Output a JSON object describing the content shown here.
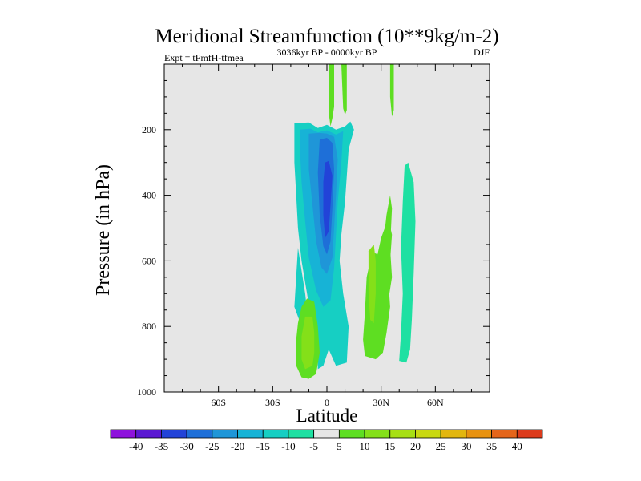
{
  "chart_data": {
    "type": "contour",
    "title": "Meridional Streamfunction (10**9kg/m-2)",
    "subtitle_left": "Expt = tFmfH-tfmea",
    "subtitle_center": "3036kyr BP - 0000kyr BP",
    "subtitle_right": "DJF",
    "xlabel": "Latitude",
    "ylabel": "Pressure (in hPa)",
    "xlim": [
      -90,
      90
    ],
    "ylim": [
      1000,
      0
    ],
    "x_major_ticks": [
      -60,
      -30,
      0,
      30,
      60
    ],
    "x_tick_labels": [
      "60S",
      "30S",
      "0",
      "30N",
      "60N"
    ],
    "x_minor_step": 10,
    "y_major_ticks": [
      200,
      400,
      600,
      800,
      1000
    ],
    "y_tick_labels": [
      "200",
      "400",
      "600",
      "800",
      "1000"
    ],
    "y_minor_step": 50,
    "background_color": "#e6e6e6",
    "colorbar": {
      "labels": [
        "-40",
        "-35",
        "-30",
        "-25",
        "-20",
        "-15",
        "-10",
        "-5",
        "5",
        "10",
        "15",
        "20",
        "25",
        "30",
        "35",
        "40"
      ],
      "colors": [
        "#8e12dc",
        "#5b18d2",
        "#2243d8",
        "#1e6fd8",
        "#1f96d8",
        "#17b3d6",
        "#16cfc3",
        "#1ee0a2",
        "#e6e6e6",
        "#5ede22",
        "#84e019",
        "#a7df14",
        "#c9d811",
        "#e2b60f",
        "#e89210",
        "#e4651b",
        "#dc3b1c"
      ]
    },
    "regions": [
      {
        "name": "neg-10-cell",
        "level": -10,
        "color": "#16cfc3",
        "points": [
          [
            -18,
            180
          ],
          [
            -10,
            178
          ],
          [
            -5,
            195
          ],
          [
            0,
            185
          ],
          [
            5,
            200
          ],
          [
            10,
            190
          ],
          [
            13,
            175
          ],
          [
            15,
            200
          ],
          [
            12,
            260
          ],
          [
            10,
            420
          ],
          [
            8,
            520
          ],
          [
            7,
            600
          ],
          [
            9,
            700
          ],
          [
            12,
            800
          ],
          [
            11,
            910
          ],
          [
            5,
            920
          ],
          [
            1,
            870
          ],
          [
            -2,
            920
          ],
          [
            -5,
            930
          ],
          [
            -5,
            860
          ],
          [
            -8,
            800
          ],
          [
            -11,
            700
          ],
          [
            -14,
            600
          ],
          [
            -16,
            500
          ],
          [
            -17,
            400
          ],
          [
            -18,
            300
          ]
        ]
      },
      {
        "name": "neg-10-sw-tail",
        "level": -10,
        "color": "#16cfc3",
        "points": [
          [
            -16,
            560
          ],
          [
            -12,
            700
          ],
          [
            -10,
            800
          ],
          [
            -12,
            830
          ],
          [
            -18,
            740
          ]
        ]
      },
      {
        "name": "neg-15-cell",
        "level": -15,
        "color": "#17b3d6",
        "points": [
          [
            -15,
            200
          ],
          [
            -9,
            197
          ],
          [
            -5,
            208
          ],
          [
            0,
            202
          ],
          [
            5,
            215
          ],
          [
            9,
            205
          ],
          [
            8,
            300
          ],
          [
            6,
            420
          ],
          [
            5,
            520
          ],
          [
            4,
            620
          ],
          [
            2,
            720
          ],
          [
            -2,
            740
          ],
          [
            -6,
            690
          ],
          [
            -10,
            590
          ],
          [
            -12,
            480
          ],
          [
            -14,
            360
          ],
          [
            -15,
            250
          ]
        ]
      },
      {
        "name": "neg-20-cell",
        "level": -20,
        "color": "#1f96d8",
        "points": [
          [
            -10,
            212
          ],
          [
            -4,
            210
          ],
          [
            0,
            212
          ],
          [
            4,
            222
          ],
          [
            6,
            290
          ],
          [
            5,
            400
          ],
          [
            4,
            500
          ],
          [
            3,
            590
          ],
          [
            0,
            640
          ],
          [
            -3,
            620
          ],
          [
            -6,
            540
          ],
          [
            -8,
            430
          ],
          [
            -10,
            320
          ]
        ]
      },
      {
        "name": "neg-25-cell",
        "level": -25,
        "color": "#1e6fd8",
        "points": [
          [
            -4,
            230
          ],
          [
            0,
            225
          ],
          [
            3,
            240
          ],
          [
            4,
            320
          ],
          [
            3,
            440
          ],
          [
            2,
            540
          ],
          [
            0,
            580
          ],
          [
            -2,
            555
          ],
          [
            -4,
            460
          ],
          [
            -5,
            330
          ]
        ]
      },
      {
        "name": "neg-30-cell",
        "level": -30,
        "color": "#2243d8",
        "points": [
          [
            -1,
            300
          ],
          [
            1,
            295
          ],
          [
            3,
            340
          ],
          [
            2,
            430
          ],
          [
            1,
            510
          ],
          [
            -1,
            530
          ],
          [
            -2,
            460
          ],
          [
            -2,
            360
          ]
        ]
      },
      {
        "name": "pos-5-south-cell",
        "level": 5,
        "color": "#5ede22",
        "points": [
          [
            -14,
            740
          ],
          [
            -11,
            715
          ],
          [
            -7,
            725
          ],
          [
            -5,
            800
          ],
          [
            -4,
            880
          ],
          [
            -6,
            945
          ],
          [
            -10,
            960
          ],
          [
            -14,
            955
          ],
          [
            -17,
            920
          ],
          [
            -17,
            840
          ],
          [
            -16,
            790
          ]
        ]
      },
      {
        "name": "pos-10-south-cell",
        "level": 10,
        "color": "#84e019",
        "points": [
          [
            -12,
            770
          ],
          [
            -8,
            770
          ],
          [
            -7,
            820
          ],
          [
            -7,
            880
          ],
          [
            -8,
            920
          ],
          [
            -12,
            930
          ],
          [
            -14,
            900
          ],
          [
            -14,
            830
          ]
        ]
      },
      {
        "name": "pos-5-north-cell",
        "level": 5,
        "color": "#5ede22",
        "points": [
          [
            28,
            580
          ],
          [
            30,
            530
          ],
          [
            34,
            470
          ],
          [
            36,
            520
          ],
          [
            35,
            600
          ],
          [
            34,
            660
          ],
          [
            35,
            740
          ],
          [
            33,
            820
          ],
          [
            31,
            880
          ],
          [
            27,
            900
          ],
          [
            21,
            890
          ],
          [
            20,
            840
          ],
          [
            21,
            760
          ],
          [
            22,
            650
          ],
          [
            24,
            600
          ],
          [
            26,
            575
          ]
        ]
      },
      {
        "name": "pos-10-north-cell",
        "level": 10,
        "color": "#84e019",
        "points": [
          [
            23,
            570
          ],
          [
            26,
            550
          ],
          [
            27,
            600
          ],
          [
            27,
            700
          ],
          [
            26,
            790
          ],
          [
            24,
            780
          ],
          [
            23,
            700
          ],
          [
            23,
            620
          ]
        ]
      },
      {
        "name": "pos-5-cell-30n",
        "level": 5,
        "color": "#5ede22",
        "points": [
          [
            35,
            400
          ],
          [
            36,
            440
          ],
          [
            35,
            560
          ],
          [
            36,
            650
          ],
          [
            34,
            720
          ],
          [
            31,
            730
          ],
          [
            30,
            660
          ],
          [
            31,
            560
          ],
          [
            33,
            460
          ]
        ]
      },
      {
        "name": "neg-5-cell-45n",
        "level": -5,
        "color": "#1ee0a2",
        "points": [
          [
            43,
            310
          ],
          [
            45,
            300
          ],
          [
            48,
            360
          ],
          [
            49,
            480
          ],
          [
            48,
            640
          ],
          [
            47,
            780
          ],
          [
            46,
            870
          ],
          [
            44,
            910
          ],
          [
            40,
            905
          ],
          [
            41,
            820
          ],
          [
            42,
            700
          ],
          [
            41,
            560
          ],
          [
            42,
            420
          ]
        ]
      },
      {
        "name": "pos-5-strip-left",
        "level": 5,
        "color": "#5ede22",
        "points": [
          [
            1,
            0
          ],
          [
            4,
            0
          ],
          [
            4,
            130
          ],
          [
            3,
            165
          ],
          [
            2,
            190
          ],
          [
            1,
            150
          ]
        ]
      },
      {
        "name": "pos-5-strip-right",
        "level": 5,
        "color": "#5ede22",
        "points": [
          [
            8,
            0
          ],
          [
            11,
            0
          ],
          [
            11,
            140
          ],
          [
            10,
            155
          ],
          [
            9,
            135
          ]
        ]
      },
      {
        "name": "pos-5-strip-30n",
        "level": 5,
        "color": "#5ede22",
        "points": [
          [
            35,
            0
          ],
          [
            37,
            0
          ],
          [
            37,
            140
          ],
          [
            36,
            160
          ],
          [
            35,
            100
          ]
        ]
      }
    ]
  }
}
